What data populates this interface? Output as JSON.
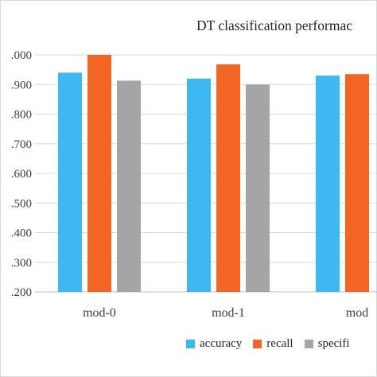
{
  "chart_data": {
    "type": "bar",
    "title": "DT classification performac",
    "categories": [
      "mod-0",
      "mod-1",
      "mod"
    ],
    "series": [
      {
        "name": "accuracy",
        "color": "#3DB8F0",
        "values": [
          0.94,
          0.92,
          0.93
        ]
      },
      {
        "name": "recall",
        "color": "#F26522",
        "values": [
          1.0,
          0.968,
          0.935
        ]
      },
      {
        "name": "specifi",
        "color": "#A5A5A5",
        "values": [
          0.913,
          0.9,
          null
        ]
      }
    ],
    "yticks": [
      ".200",
      ".300",
      ".400",
      ".500",
      ".600",
      ".700",
      ".800",
      ".900",
      ".000"
    ],
    "ylim": [
      0.2,
      1.0
    ],
    "grid": true,
    "legend_position": "bottom"
  }
}
